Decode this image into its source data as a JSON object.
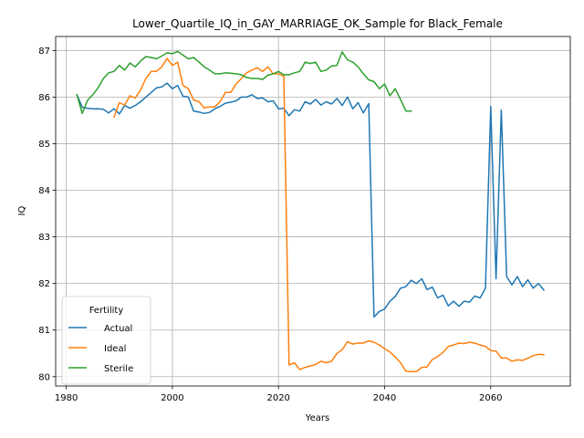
{
  "chart_data": {
    "type": "line",
    "title": "Lower_Quartile_IQ_in_GAY_MARRIAGE_OK_Sample for Black_Female",
    "xlabel": "Years",
    "ylabel": "IQ",
    "xlim": [
      1978,
      2075
    ],
    "ylim": [
      79.8,
      87.3
    ],
    "xticks": [
      1980,
      2000,
      2020,
      2040,
      2060
    ],
    "yticks": [
      80,
      81,
      82,
      83,
      84,
      85,
      86,
      87
    ],
    "grid": true,
    "legend": {
      "title": "Fertility",
      "location": "lower-left"
    },
    "series": [
      {
        "name": "Actual",
        "color": "#1f77b4",
        "x": [
          1982,
          1983,
          1984,
          1985,
          1986,
          1987,
          1988,
          1989,
          1990,
          1991,
          1992,
          1993,
          1994,
          1995,
          1996,
          1997,
          1998,
          1999,
          2000,
          2001,
          2002,
          2003,
          2004,
          2005,
          2006,
          2007,
          2008,
          2009,
          2010,
          2011,
          2012,
          2013,
          2014,
          2015,
          2016,
          2017,
          2018,
          2019,
          2020,
          2021,
          2022,
          2023,
          2024,
          2025,
          2026,
          2027,
          2028,
          2029,
          2030,
          2031,
          2032,
          2033,
          2034,
          2035,
          2036,
          2037,
          2038,
          2039,
          2040,
          2041,
          2042,
          2043,
          2044,
          2045,
          2046,
          2047,
          2048,
          2049,
          2050,
          2051,
          2052,
          2053,
          2054,
          2055,
          2056,
          2057,
          2058,
          2059,
          2060,
          2061,
          2062,
          2063,
          2064,
          2065,
          2066,
          2067,
          2068,
          2069,
          2070
        ],
        "y": [
          86.05,
          85.78,
          85.76,
          85.75,
          85.75,
          85.74,
          85.66,
          85.75,
          85.64,
          85.82,
          85.76,
          85.82,
          85.9,
          86.0,
          86.1,
          86.2,
          86.22,
          86.3,
          86.18,
          86.25,
          86.02,
          86.0,
          85.7,
          85.68,
          85.65,
          85.67,
          85.75,
          85.8,
          85.87,
          85.89,
          85.92,
          86.0,
          86.0,
          86.05,
          85.97,
          85.98,
          85.9,
          85.92,
          85.75,
          85.76,
          85.6,
          85.73,
          85.7,
          85.9,
          85.85,
          85.95,
          85.83,
          85.9,
          85.85,
          85.97,
          85.82,
          86.0,
          85.75,
          85.88,
          85.66,
          85.86,
          81.28,
          81.4,
          81.45,
          81.62,
          81.72,
          81.9,
          81.93,
          82.07,
          82.0,
          82.1,
          81.87,
          81.92,
          81.69,
          81.75,
          81.52,
          81.62,
          81.51,
          81.62,
          81.6,
          81.73,
          81.69,
          81.9,
          85.8,
          82.1,
          85.72,
          82.15,
          81.97,
          82.15,
          81.93,
          82.08,
          81.9,
          82.0,
          81.86
        ]
      },
      {
        "name": "Ideal",
        "color": "#ff7f0e",
        "x": [
          1989,
          1990,
          1991,
          1992,
          1993,
          1994,
          1995,
          1996,
          1997,
          1998,
          1999,
          2000,
          2001,
          2002,
          2003,
          2004,
          2005,
          2006,
          2007,
          2008,
          2009,
          2010,
          2011,
          2012,
          2013,
          2014,
          2015,
          2016,
          2017,
          2018,
          2019,
          2020,
          2021,
          2022,
          2023,
          2024,
          2025,
          2026,
          2027,
          2028,
          2029,
          2030,
          2031,
          2032,
          2033,
          2034,
          2035,
          2036,
          2037,
          2038,
          2039,
          2040,
          2041,
          2042,
          2043,
          2044,
          2045,
          2046,
          2047,
          2048,
          2049,
          2050,
          2051,
          2052,
          2053,
          2054,
          2055,
          2056,
          2057,
          2058,
          2059,
          2060,
          2061,
          2062,
          2063,
          2064,
          2065,
          2066,
          2067,
          2068,
          2069,
          2070
        ],
        "y": [
          85.57,
          85.88,
          85.83,
          86.03,
          85.98,
          86.15,
          86.4,
          86.55,
          86.55,
          86.65,
          86.83,
          86.68,
          86.75,
          86.25,
          86.18,
          85.94,
          85.9,
          85.77,
          85.79,
          85.79,
          85.9,
          86.1,
          86.1,
          86.28,
          86.4,
          86.52,
          86.58,
          86.63,
          86.55,
          86.65,
          86.5,
          86.5,
          86.45,
          80.25,
          80.3,
          80.15,
          80.2,
          80.23,
          80.26,
          80.33,
          80.3,
          80.33,
          80.5,
          80.58,
          80.75,
          80.7,
          80.72,
          80.72,
          80.77,
          80.74,
          80.68,
          80.6,
          80.53,
          80.42,
          80.3,
          80.12,
          80.11,
          80.11,
          80.2,
          80.21,
          80.37,
          80.43,
          80.52,
          80.65,
          80.68,
          80.72,
          80.71,
          80.74,
          80.72,
          80.68,
          80.65,
          80.56,
          80.55,
          80.4,
          80.4,
          80.33,
          80.36,
          80.35,
          80.4,
          80.45,
          80.48,
          80.47
        ]
      },
      {
        "name": "Sterile",
        "color": "#2ca02c",
        "x": [
          1982,
          1983,
          1984,
          1985,
          1986,
          1987,
          1988,
          1989,
          1990,
          1991,
          1992,
          1993,
          1994,
          1995,
          1996,
          1997,
          1998,
          1999,
          2000,
          2001,
          2002,
          2003,
          2004,
          2005,
          2006,
          2007,
          2008,
          2009,
          2010,
          2011,
          2012,
          2013,
          2014,
          2015,
          2016,
          2017,
          2018,
          2019,
          2020,
          2021,
          2022,
          2023,
          2024,
          2025,
          2026,
          2027,
          2028,
          2029,
          2030,
          2031,
          2032,
          2033,
          2034,
          2035,
          2036,
          2037,
          2038,
          2039,
          2040,
          2041,
          2042,
          2043,
          2044,
          2045
        ],
        "y": [
          86.05,
          85.65,
          85.93,
          86.05,
          86.2,
          86.4,
          86.52,
          86.55,
          86.68,
          86.58,
          86.73,
          86.65,
          86.77,
          86.87,
          86.85,
          86.82,
          86.88,
          86.95,
          86.93,
          86.98,
          86.9,
          86.82,
          86.85,
          86.75,
          86.65,
          86.58,
          86.5,
          86.5,
          86.52,
          86.51,
          86.5,
          86.48,
          86.42,
          86.4,
          86.4,
          86.38,
          86.47,
          86.5,
          86.55,
          86.48,
          86.48,
          86.52,
          86.55,
          86.75,
          86.72,
          86.75,
          86.55,
          86.58,
          86.67,
          86.68,
          86.97,
          86.8,
          86.75,
          86.65,
          86.5,
          86.37,
          86.33,
          86.18,
          86.28,
          86.03,
          86.18,
          85.95,
          85.7,
          85.7
        ]
      }
    ]
  }
}
